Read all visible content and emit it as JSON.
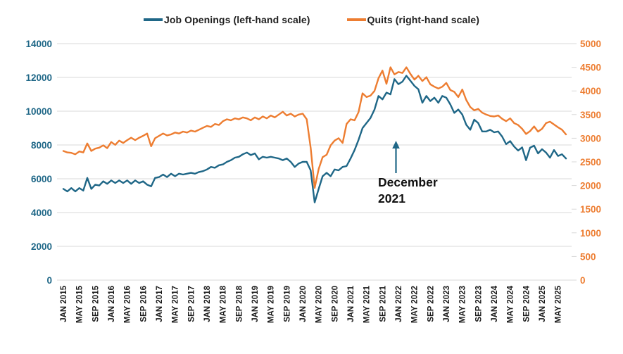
{
  "legend": {
    "items": [
      {
        "label": "Job Openings (left-hand scale)",
        "color": "#1F6787"
      },
      {
        "label": "Quits (right-hand scale)",
        "color": "#ED7D31"
      }
    ]
  },
  "annotation": {
    "line1": "December",
    "line2": "2021",
    "arrow_points_to_month": "DEC 2021",
    "arrow_color": "#1F6787"
  },
  "chart_data": {
    "type": "line",
    "title": "",
    "x_unit": "month",
    "x_range": [
      "JAN 2015",
      "JUL 2025"
    ],
    "x_tick_interval_months": 4,
    "x_tick_labels": [
      "JAN 2015",
      "MAY 2015",
      "SEP 2015",
      "JAN 2016",
      "MAY 2016",
      "SEP 2016",
      "JAN 2017",
      "MAY 2017",
      "SEP 2017",
      "JAN 2018",
      "MAY 2018",
      "SEP 2018",
      "JAN 2019",
      "MAY 2019",
      "SEP 2019",
      "JAN 2020",
      "MAY 2020",
      "SEP 2020",
      "JAN 2021",
      "MAY 2021",
      "SEP 2021",
      "JAN 2022",
      "MAY 2022",
      "SEP 2022",
      "JAN 2023",
      "MAY 2023",
      "SEP 2023",
      "JAN 2024",
      "MAY 2024",
      "SEP 2024",
      "JAN 2025",
      "MAY 2025"
    ],
    "grid": "horizontal",
    "legend_position": "top",
    "left_axis": {
      "series": "Job Openings",
      "min": 0,
      "max": 14000,
      "step": 2000,
      "ticks": [
        0,
        2000,
        4000,
        6000,
        8000,
        10000,
        12000,
        14000
      ],
      "color": "#1F6787"
    },
    "right_axis": {
      "series": "Quits",
      "min": 0,
      "max": 5000,
      "step": 500,
      "ticks": [
        0,
        500,
        1000,
        1500,
        2000,
        2500,
        3000,
        3500,
        4000,
        4500,
        5000
      ],
      "color": "#ED7D31"
    },
    "series": [
      {
        "name": "Job Openings (left-hand scale)",
        "axis": "left",
        "color": "#1F6787",
        "values": [
          5400,
          5250,
          5450,
          5250,
          5450,
          5300,
          6050,
          5400,
          5650,
          5600,
          5850,
          5700,
          5900,
          5750,
          5900,
          5750,
          5900,
          5700,
          5900,
          5750,
          5850,
          5650,
          5550,
          6050,
          6100,
          6250,
          6100,
          6300,
          6150,
          6300,
          6250,
          6300,
          6350,
          6300,
          6400,
          6450,
          6550,
          6700,
          6650,
          6800,
          6850,
          7000,
          7100,
          7250,
          7300,
          7450,
          7550,
          7400,
          7500,
          7150,
          7300,
          7250,
          7300,
          7250,
          7200,
          7100,
          7200,
          7000,
          6700,
          6900,
          7000,
          7000,
          6500,
          4600,
          5400,
          6150,
          6350,
          6150,
          6550,
          6500,
          6700,
          6750,
          7200,
          7700,
          8300,
          9000,
          9300,
          9600,
          10100,
          10900,
          10700,
          11100,
          11000,
          11900,
          11600,
          11750,
          12100,
          11800,
          11500,
          11300,
          10500,
          10900,
          10600,
          10800,
          10500,
          10900,
          10800,
          10400,
          9900,
          10100,
          9800,
          9200,
          8900,
          9500,
          9300,
          8800,
          8800,
          8900,
          8750,
          8800,
          8500,
          8050,
          8230,
          7910,
          7670,
          7860,
          7100,
          7840,
          7960,
          7500,
          7750,
          7550,
          7250,
          7700,
          7350,
          7450,
          7200
        ]
      },
      {
        "name": "Quits (right-hand scale)",
        "axis": "right",
        "color": "#ED7D31",
        "values": [
          2730,
          2700,
          2690,
          2660,
          2720,
          2700,
          2890,
          2730,
          2780,
          2800,
          2850,
          2790,
          2920,
          2860,
          2950,
          2900,
          2960,
          3010,
          2960,
          3010,
          3050,
          3100,
          2830,
          3000,
          3050,
          3100,
          3060,
          3080,
          3120,
          3100,
          3140,
          3120,
          3160,
          3140,
          3180,
          3220,
          3260,
          3240,
          3300,
          3280,
          3360,
          3400,
          3380,
          3420,
          3400,
          3440,
          3420,
          3380,
          3440,
          3400,
          3460,
          3420,
          3480,
          3440,
          3500,
          3560,
          3480,
          3520,
          3460,
          3500,
          3520,
          3400,
          2800,
          1950,
          2350,
          2600,
          2650,
          2850,
          2950,
          3000,
          2900,
          3300,
          3400,
          3380,
          3550,
          3950,
          3870,
          3900,
          4000,
          4270,
          4430,
          4150,
          4500,
          4350,
          4400,
          4380,
          4500,
          4360,
          4240,
          4320,
          4210,
          4290,
          4140,
          4090,
          4050,
          4090,
          4170,
          4020,
          3980,
          3870,
          4030,
          3810,
          3660,
          3590,
          3620,
          3540,
          3500,
          3470,
          3460,
          3480,
          3410,
          3360,
          3420,
          3320,
          3280,
          3200,
          3090,
          3150,
          3250,
          3140,
          3200,
          3320,
          3350,
          3290,
          3230,
          3180,
          3080
        ]
      }
    ]
  }
}
